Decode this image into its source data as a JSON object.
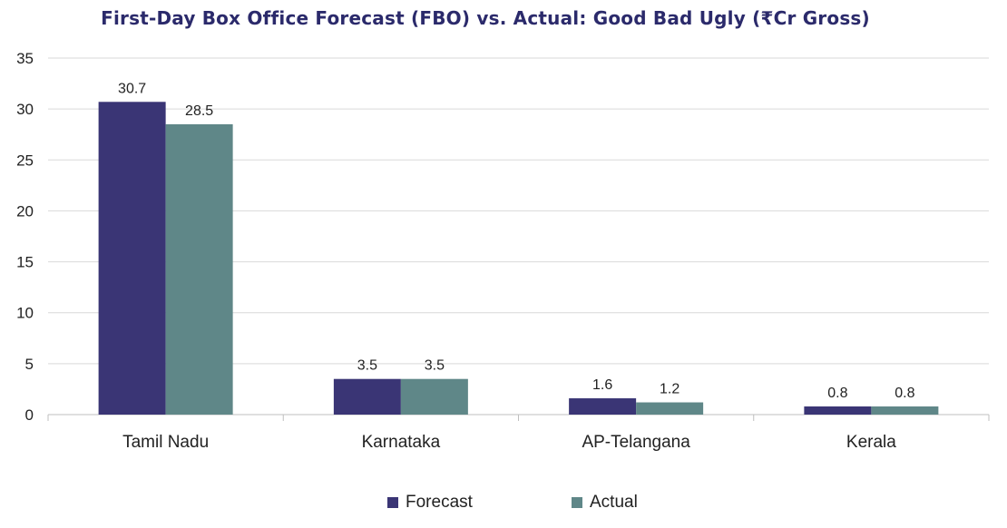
{
  "chart_data": {
    "type": "bar",
    "title": "First-Day Box Office Forecast (FBO) vs. Actual: Good Bad Ugly (₹Cr Gross)",
    "xlabel": "",
    "ylabel": "",
    "categories": [
      "Tamil Nadu",
      "Karnataka",
      "AP-Telangana",
      "Kerala"
    ],
    "series": [
      {
        "name": "Forecast",
        "values": [
          30.7,
          3.5,
          1.6,
          0.8
        ],
        "color": "#3a3575"
      },
      {
        "name": "Actual",
        "values": [
          28.5,
          3.5,
          1.2,
          0.8
        ],
        "color": "#5f8788"
      }
    ],
    "ylim": [
      0,
      35
    ],
    "yticks": [
      "0",
      "5",
      "10",
      "15",
      "20",
      "25",
      "30",
      "35"
    ],
    "data_labels": [
      [
        "30.7",
        "3.5",
        "1.6",
        "0.8"
      ],
      [
        "28.5",
        "3.5",
        "1.2",
        "0.8"
      ]
    ],
    "grid": true,
    "legend_position": "bottom",
    "colors": {
      "title": "#2b2a6b",
      "grid": "#d9d9d9",
      "axis": "#bfbfbf"
    }
  }
}
